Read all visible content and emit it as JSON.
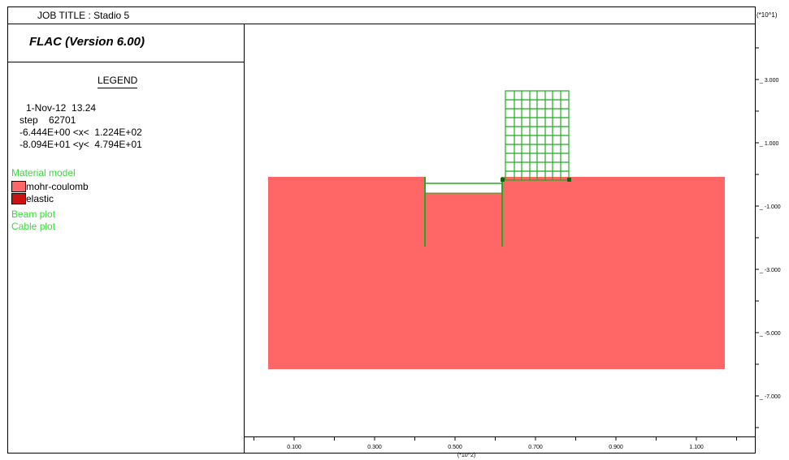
{
  "header": {
    "job_title": "JOB TITLE : Stadio 5"
  },
  "panel": {
    "version": "FLAC (Version 6.00)",
    "legend_title": "LEGEND",
    "date": "1-Nov-12  13.24",
    "step": "step    62701",
    "x_range": "-6.444E+00 <x<  1.224E+02",
    "y_range": "-8.094E+01 <y<  4.794E+01",
    "material_model_heading": "Material model",
    "materials": [
      {
        "label": "mohr-coulomb",
        "color": "#ff6666"
      },
      {
        "label": "elastic",
        "color": "#cc1111"
      }
    ],
    "beam_plot": "Beam plot",
    "cable_plot": "Cable plot"
  },
  "axes": {
    "y_scale": "(*10^1)",
    "x_scale": "(*10^2)",
    "y_ticks": [
      "3.000",
      "1.000",
      "-1.000",
      "-3.000",
      "-5.000",
      "-7.000"
    ],
    "x_ticks": [
      "0.100",
      "0.300",
      "0.500",
      "0.700",
      "0.900",
      "1.100"
    ]
  },
  "colors": {
    "soil": "#ff6666",
    "grid": "#22aa22",
    "beam": "#22aa22",
    "text_green": "#33dd33"
  }
}
